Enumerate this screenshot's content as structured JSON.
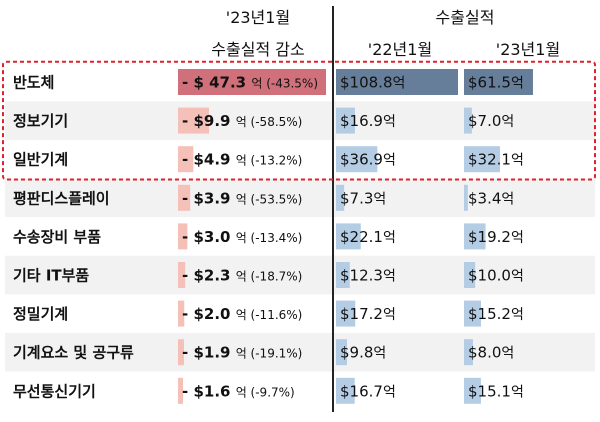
{
  "headers": {
    "decrease_line1": "'23년1월",
    "decrease_line2": "수출실적 감소",
    "exports_title": "수출실적",
    "col_2022": "'22년1월",
    "col_2023": "'23년1월"
  },
  "chart_data": {
    "type": "table",
    "unit": "억",
    "columns": [
      "'23년1월 수출실적 감소",
      "'22년1월",
      "'23년1월"
    ],
    "highlighted_categories": [
      "반도체",
      "정보기기",
      "일반기계"
    ],
    "rows": [
      {
        "category": "반도체",
        "decrease": 47.3,
        "decrease_label": "- $ 47.3",
        "decrease_pct": "(-43.5%)",
        "v2022": 108.8,
        "v2022_label": "$108.8",
        "v2023": 61.5,
        "v2023_label": "$61.5"
      },
      {
        "category": "정보기기",
        "decrease": 9.9,
        "decrease_label": "- $9.9",
        "decrease_pct": "(-58.5%)",
        "v2022": 16.9,
        "v2022_label": "$16.9",
        "v2023": 7.0,
        "v2023_label": "$7.0"
      },
      {
        "category": "일반기계",
        "decrease": 4.9,
        "decrease_label": "- $4.9",
        "decrease_pct": "(-13.2%)",
        "v2022": 36.9,
        "v2022_label": "$36.9",
        "v2023": 32.1,
        "v2023_label": "$32.1"
      },
      {
        "category": "평판디스플레이",
        "decrease": 3.9,
        "decrease_label": "- $3.9",
        "decrease_pct": "(-53.5%)",
        "v2022": 7.3,
        "v2022_label": "$7.3",
        "v2023": 3.4,
        "v2023_label": "$3.4"
      },
      {
        "category": "수송장비 부품",
        "decrease": 3.0,
        "decrease_label": "- $3.0",
        "decrease_pct": "(-13.4%)",
        "v2022": 22.1,
        "v2022_label": "$22.1",
        "v2023": 19.2,
        "v2023_label": "$19.2"
      },
      {
        "category": "기타 IT부품",
        "decrease": 2.3,
        "decrease_label": "- $2.3",
        "decrease_pct": "(-18.7%)",
        "v2022": 12.3,
        "v2022_label": "$12.3",
        "v2023": 10.0,
        "v2023_label": "$10.0"
      },
      {
        "category": "정밀기계",
        "decrease": 2.0,
        "decrease_label": "- $2.0",
        "decrease_pct": "(-11.6%)",
        "v2022": 17.2,
        "v2022_label": "$17.2",
        "v2023": 15.2,
        "v2023_label": "$15.2"
      },
      {
        "category": "기계요소 및 공구류",
        "decrease": 1.9,
        "decrease_label": "- $1.9",
        "decrease_pct": "(-19.1%)",
        "v2022": 9.8,
        "v2022_label": "$9.8",
        "v2023": 8.0,
        "v2023_label": "$8.0"
      },
      {
        "category": "무선통신기기",
        "decrease": 1.6,
        "decrease_label": "- $1.6",
        "decrease_pct": "(-9.7%)",
        "v2022": 16.7,
        "v2022_label": "$16.7",
        "v2023": 15.1,
        "v2023_label": "$15.1"
      }
    ],
    "colors": {
      "decrease_bar": "#f4c0b8",
      "decrease_bar_top": "#d0707a",
      "export_bar": "#b4cde5",
      "export_bar_top": "#667e99",
      "stripe": "#f2f2f2",
      "highlight_border": "#e0202e"
    }
  }
}
